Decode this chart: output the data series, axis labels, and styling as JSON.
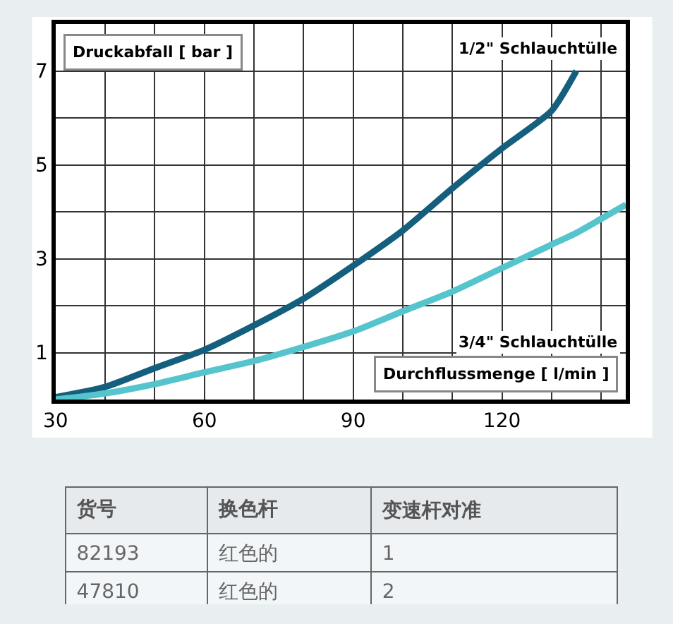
{
  "chart_data": [
    {
      "type": "line",
      "xlabel": "Durchflussmenge [ l/min ]",
      "ylabel": "Druckabfall [ bar ]",
      "x": [
        30,
        40,
        50,
        60,
        70,
        80,
        90,
        100,
        110,
        120,
        130,
        135,
        140,
        145
      ],
      "series": [
        {
          "name": "1/2\" Schlauchtülle",
          "color": "#145f7d",
          "values": [
            0.05,
            0.27,
            0.67,
            1.06,
            1.58,
            2.15,
            2.85,
            3.6,
            4.5,
            5.35,
            6.15,
            7.0,
            null,
            null
          ]
        },
        {
          "name": "3/4\" Schlauchtülle",
          "color": "#55c4cc",
          "values": [
            0.0,
            0.13,
            0.33,
            0.58,
            0.82,
            1.12,
            1.45,
            1.88,
            2.3,
            2.8,
            3.3,
            3.55,
            3.85,
            4.15
          ]
        }
      ],
      "xlim": [
        30,
        145
      ],
      "ylim": [
        0,
        8
      ],
      "xticks": [
        30,
        {
          "value": 40,
          "label": null
        },
        {
          "value": 50,
          "label": null
        },
        60,
        {
          "value": 70,
          "label": null
        },
        {
          "value": 80,
          "label": null
        },
        90,
        {
          "value": 100,
          "label": null
        },
        {
          "value": 110,
          "label": null
        },
        120,
        {
          "value": 130,
          "label": null
        },
        {
          "value": 140,
          "label": null
        }
      ],
      "yticks": [
        1,
        {
          "value": 2,
          "label": null
        },
        3,
        {
          "value": 4,
          "label": null
        },
        5,
        {
          "value": 6,
          "label": null
        },
        7
      ],
      "grid": true,
      "marker": "none",
      "line_style": "solid"
    },
    {
      "type": "other",
      "categories": [
        "货号",
        "换色杆",
        "变速杆对准"
      ],
      "cell_labels": [
        [
          "82193",
          "红色的",
          "1"
        ],
        [
          "47810",
          "红色的",
          "2"
        ]
      ]
    }
  ]
}
